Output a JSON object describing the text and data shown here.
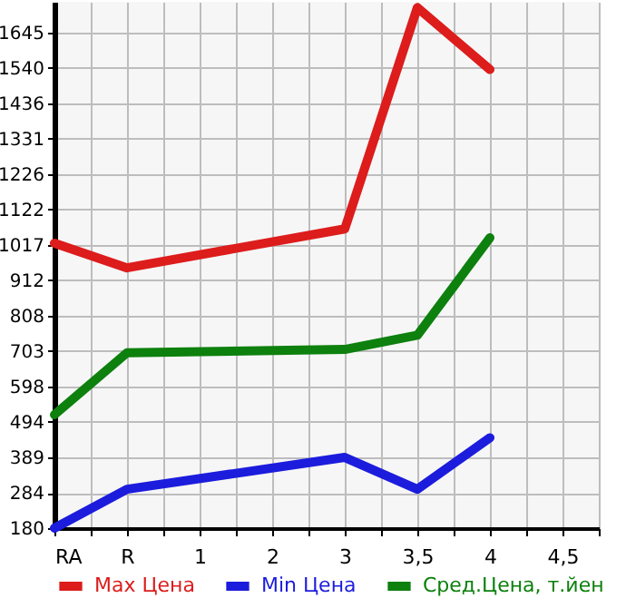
{
  "chart_data": {
    "type": "line",
    "categories": [
      "RA",
      "R",
      "1",
      "2",
      "3",
      "3,5",
      "4",
      "4,5"
    ],
    "series": [
      {
        "name": "Max Цена",
        "color": "#dd1c1c",
        "values": [
          1022,
          949,
          null,
          null,
          1064,
          1718,
          1535,
          null
        ]
      },
      {
        "name": "Min Цена",
        "color": "#1c1cdd",
        "values": [
          180,
          295,
          null,
          null,
          389,
          295,
          447,
          null
        ]
      },
      {
        "name": "Сред.Цена, т.йен",
        "color": "#0d800d",
        "values": [
          515,
          698,
          null,
          null,
          708,
          750,
          1038,
          null
        ]
      }
    ],
    "ylim": [
      180,
      1735
    ],
    "yticks": [
      180,
      284,
      389,
      494,
      598,
      703,
      808,
      912,
      1017,
      1122,
      1226,
      1331,
      1436,
      1540,
      1645
    ],
    "grid": true,
    "legend": "bottom"
  }
}
